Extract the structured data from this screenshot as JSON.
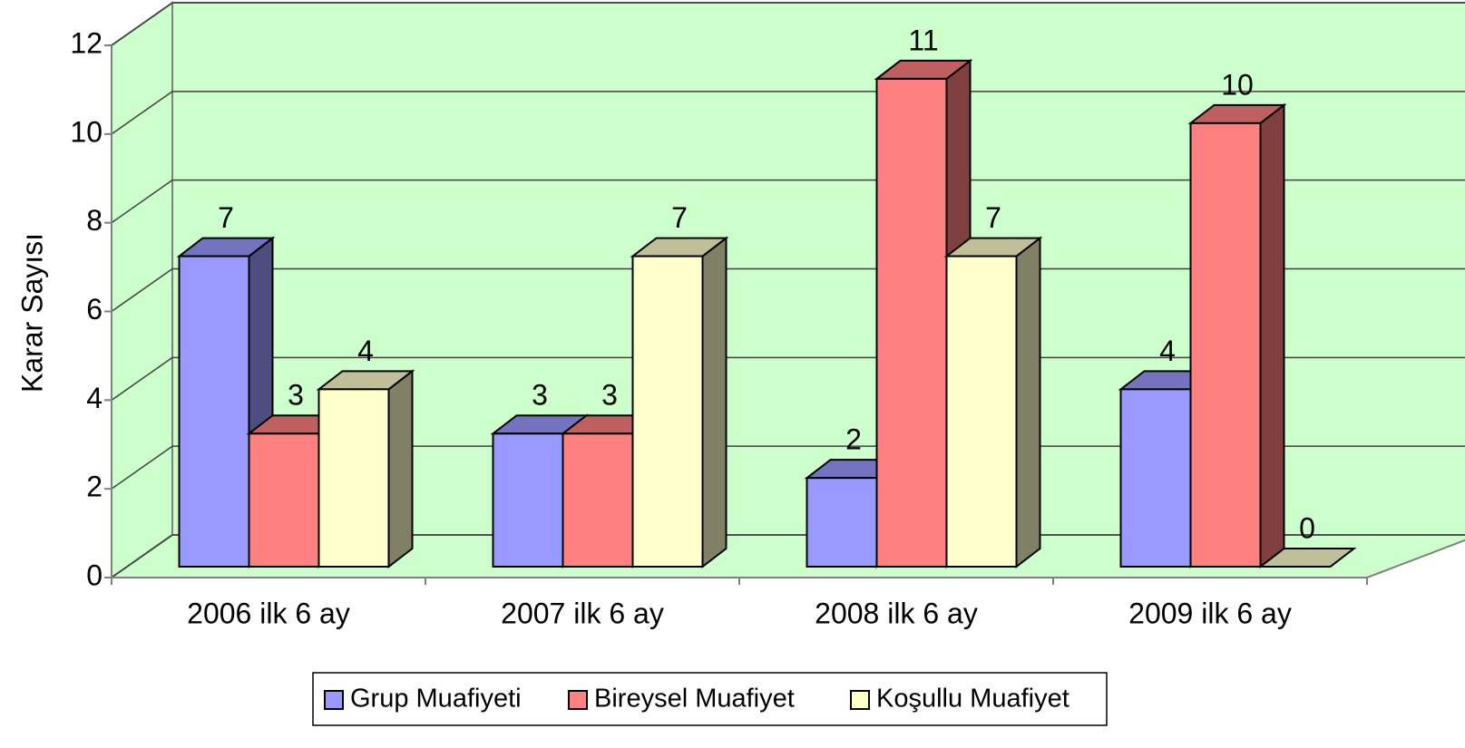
{
  "chart_data": {
    "type": "bar3d",
    "y_label": "Karar Sayısı",
    "categories": [
      "2006 ilk 6 ay",
      "2007 ilk 6 ay",
      "2008 ilk 6 ay",
      "2009 ilk 6 ay"
    ],
    "series": [
      {
        "name": "Grup Muafiyeti",
        "color": "#9999ff",
        "values": [
          7,
          3,
          2,
          4
        ]
      },
      {
        "name": "Bireysel Muafiyet",
        "color": "#ff8080",
        "values": [
          3,
          3,
          11,
          10
        ]
      },
      {
        "name": "Koşullu Muafiyet",
        "color": "#ffffcc",
        "values": [
          4,
          7,
          7,
          0
        ]
      }
    ],
    "ylim": [
      0,
      12
    ],
    "yticks": [
      0,
      2,
      4,
      6,
      8,
      10,
      12
    ],
    "grid": true,
    "legend": "bottom",
    "wall_color": "#ccffcc"
  }
}
